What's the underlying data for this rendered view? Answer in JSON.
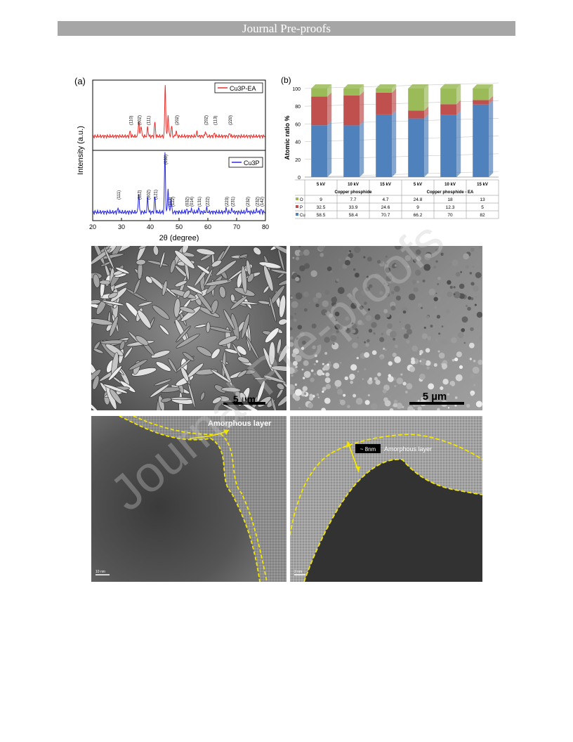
{
  "header": {
    "title": "Journal Pre-proofs"
  },
  "watermark": {
    "text": "Journal Pre-proofs"
  },
  "figure": {
    "panel_a": {
      "label": "(a)",
      "ylabel": "Intensity (a.u.)",
      "xlabel": "2θ (degree)",
      "xticks": [
        "20",
        "30",
        "40",
        "50",
        "60",
        "70",
        "80"
      ],
      "top_legend": "Cu3P-EA",
      "bottom_legend": "Cu3P",
      "top_peak_labels": [
        "(110)",
        "(002)",
        "(111)",
        "(202)",
        "(202)",
        "(113)",
        "(220)"
      ],
      "bottom_peak_labels": [
        "(111)",
        "(112)",
        "(002)",
        "(121)",
        "(030)",
        "(113)",
        "(122)",
        "(032)",
        "(014)",
        "(131)",
        "(222)",
        "(223)",
        "(231)",
        "(232)",
        "(232)",
        "(142)"
      ]
    },
    "panel_b": {
      "label": "(b)",
      "ylabel": "Atomic ratio %",
      "group_labels": [
        "Copper phosphide",
        "Copper phosphide - EA"
      ]
    },
    "sem_left": {
      "scale_label": "5 µm"
    },
    "sem_right": {
      "scale_label": "5 µm"
    },
    "tem_left": {
      "annotation": "Amorphous layer",
      "scale_label": "10 nm"
    },
    "tem_right": {
      "annotation": "Amorphous layer",
      "thickness_label": "~ 8nm",
      "scale_label": "2 nm"
    }
  },
  "chart_data": [
    {
      "type": "line",
      "title": "",
      "xlabel": "2θ (degree)",
      "ylabel": "Intensity (a.u.)",
      "xlim": [
        20,
        80
      ],
      "series": [
        {
          "name": "Cu3P-EA",
          "color": "#e8302c",
          "peaks": [
            [
              33.0,
              0.1
            ],
            [
              36.0,
              0.3
            ],
            [
              36.8,
              0.22
            ],
            [
              39.1,
              0.18
            ],
            [
              41.6,
              0.28
            ],
            [
              45.2,
              1.0
            ],
            [
              46.2,
              0.42
            ],
            [
              47.4,
              0.2
            ],
            [
              49.0,
              0.1
            ],
            [
              56.2,
              0.08
            ],
            [
              59.2,
              0.1
            ],
            [
              62.3,
              0.06
            ],
            [
              67.6,
              0.06
            ]
          ]
        },
        {
          "name": "Cu3P",
          "color": "#2a2ae0",
          "peaks": [
            [
              28.8,
              0.06
            ],
            [
              36.0,
              0.32
            ],
            [
              39.1,
              0.24
            ],
            [
              41.6,
              0.26
            ],
            [
              45.1,
              1.0
            ],
            [
              46.2,
              0.4
            ],
            [
              47.2,
              0.24
            ],
            [
              52.6,
              0.05
            ],
            [
              54.2,
              0.05
            ],
            [
              56.8,
              0.07
            ],
            [
              59.6,
              0.06
            ],
            [
              66.3,
              0.06
            ],
            [
              68.4,
              0.05
            ],
            [
              73.6,
              0.05
            ],
            [
              77.0,
              0.04
            ],
            [
              78.5,
              0.04
            ]
          ]
        }
      ]
    },
    {
      "type": "bar",
      "stacked": true,
      "ylabel": "Atomic ratio %",
      "ylim": [
        0,
        100
      ],
      "yticks": [
        0,
        20,
        40,
        60,
        80,
        100
      ],
      "categories": [
        "5 kV",
        "10 kV",
        "15 kV",
        "5 kV",
        "10 kV",
        "15 kV"
      ],
      "groups": [
        "Copper phosphide",
        "Copper phosphide - EA"
      ],
      "series": [
        {
          "name": "O",
          "color": "#9bbb59",
          "values": [
            9,
            7.7,
            4.7,
            24.8,
            18,
            13
          ]
        },
        {
          "name": "P",
          "color": "#c0504d",
          "values": [
            32.5,
            33.9,
            24.6,
            9,
            12.3,
            5
          ]
        },
        {
          "name": "Cu",
          "color": "#4f81bd",
          "values": [
            58.5,
            58.4,
            70.7,
            66.2,
            70,
            82
          ]
        }
      ],
      "grid": true
    }
  ]
}
